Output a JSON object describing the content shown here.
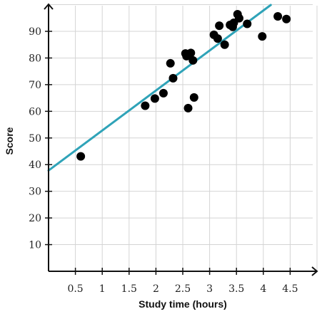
{
  "chart_data": {
    "type": "scatter",
    "title": "",
    "xlabel": "Study time (hours)",
    "ylabel": "Score",
    "xlim": [
      0,
      5
    ],
    "ylim": [
      0,
      100
    ],
    "x_ticks": [
      "0.5",
      "1",
      "1.5",
      "2",
      "2.5",
      "3",
      "3.5",
      "4",
      "4.5"
    ],
    "y_ticks": [
      "10",
      "20",
      "30",
      "40",
      "50",
      "60",
      "70",
      "80",
      "90"
    ],
    "grid": true,
    "point_color": "#000000",
    "trendline": {
      "color": "#2fa3b8",
      "slope": 15.0,
      "intercept": 37.8
    },
    "points": [
      {
        "x": 0.6,
        "y": 43.1
      },
      {
        "x": 1.8,
        "y": 62.1
      },
      {
        "x": 1.98,
        "y": 64.8
      },
      {
        "x": 2.14,
        "y": 66.8
      },
      {
        "x": 2.27,
        "y": 78.0
      },
      {
        "x": 2.32,
        "y": 72.4
      },
      {
        "x": 2.55,
        "y": 81.7
      },
      {
        "x": 2.57,
        "y": 80.7
      },
      {
        "x": 2.6,
        "y": 61.2
      },
      {
        "x": 2.65,
        "y": 81.9
      },
      {
        "x": 2.69,
        "y": 79.1
      },
      {
        "x": 2.71,
        "y": 65.2
      },
      {
        "x": 3.08,
        "y": 88.7
      },
      {
        "x": 3.15,
        "y": 87.3
      },
      {
        "x": 3.18,
        "y": 92.1
      },
      {
        "x": 3.28,
        "y": 85.0
      },
      {
        "x": 3.38,
        "y": 92.4
      },
      {
        "x": 3.45,
        "y": 93.2
      },
      {
        "x": 3.43,
        "y": 91.7
      },
      {
        "x": 3.52,
        "y": 96.4
      },
      {
        "x": 3.55,
        "y": 94.9
      },
      {
        "x": 3.7,
        "y": 92.8
      },
      {
        "x": 3.98,
        "y": 88.1
      },
      {
        "x": 4.27,
        "y": 95.6
      },
      {
        "x": 4.43,
        "y": 94.6
      }
    ]
  }
}
